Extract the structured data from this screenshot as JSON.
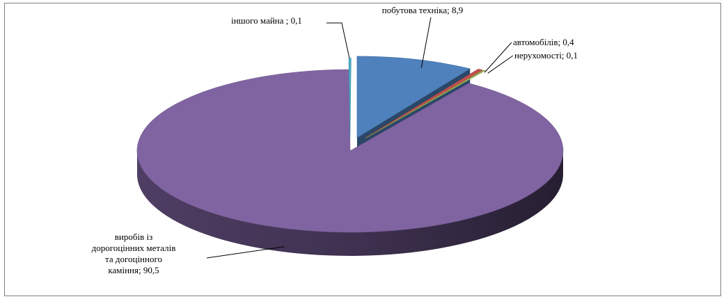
{
  "chart_data": {
    "type": "pie",
    "title": "",
    "style": "3d-exploded",
    "legend": "none",
    "slices": [
      {
        "label": "побутова техніка",
        "value": 8.9,
        "color": "#4f81bd",
        "label_lines": [
          "побутова техніка; 8,9"
        ]
      },
      {
        "label": "автомобілів",
        "value": 0.4,
        "color": "#c0504d",
        "label_lines": [
          "автомобілів; 0,4"
        ]
      },
      {
        "label": "нерухомості",
        "value": 0.1,
        "color": "#9bbb59",
        "label_lines": [
          "нерухомості; 0,1"
        ]
      },
      {
        "label": "виробів із дорогоцінних металів та догоцінного каміння",
        "value": 90.5,
        "color": "#8064a2",
        "label_lines": [
          "виробів із",
          "дорогоцінних металів",
          "та догоцінного",
          "каміння; 90,5"
        ]
      },
      {
        "label": "іншого майна",
        "value": 0.1,
        "color": "#4bacc6",
        "label_lines": [
          "іншого майна ; 0,1"
        ]
      }
    ]
  }
}
